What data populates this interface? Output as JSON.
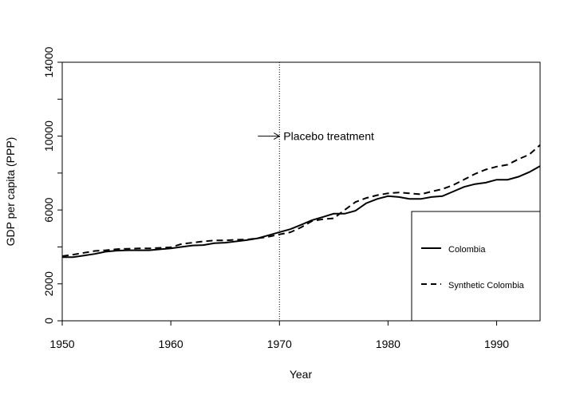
{
  "chart_data": {
    "type": "line",
    "xlabel": "Year",
    "ylabel": "GDP per capita (PPP)",
    "xlim": [
      1950,
      1994
    ],
    "ylim": [
      0,
      14000
    ],
    "x_ticks": [
      1950,
      1960,
      1970,
      1980,
      1990
    ],
    "y_ticks": [
      0,
      2000,
      6000,
      10000,
      14000
    ],
    "annotation": {
      "text": "Placebo treatment",
      "year": 1970,
      "value": 10000
    },
    "treatment_line_year": 1970,
    "legend_position": "bottom-right",
    "series": [
      {
        "name": "Colombia",
        "style": "solid",
        "color": "#000000",
        "x": [
          1950,
          1951,
          1952,
          1953,
          1954,
          1955,
          1956,
          1957,
          1958,
          1959,
          1960,
          1961,
          1962,
          1963,
          1964,
          1965,
          1966,
          1967,
          1968,
          1969,
          1970,
          1971,
          1972,
          1973,
          1974,
          1975,
          1976,
          1977,
          1978,
          1979,
          1980,
          1981,
          1982,
          1983,
          1984,
          1985,
          1986,
          1987,
          1988,
          1989,
          1990,
          1991,
          1992,
          1993,
          1994
        ],
        "values": [
          3450,
          3450,
          3530,
          3620,
          3740,
          3800,
          3820,
          3820,
          3820,
          3870,
          3920,
          4000,
          4080,
          4100,
          4200,
          4230,
          4300,
          4370,
          4470,
          4630,
          4800,
          4960,
          5200,
          5450,
          5620,
          5800,
          5800,
          5960,
          6370,
          6600,
          6750,
          6700,
          6600,
          6600,
          6700,
          6750,
          7000,
          7250,
          7400,
          7480,
          7640,
          7640,
          7800,
          8050,
          8380
        ]
      },
      {
        "name": "Synthetic Colombia",
        "style": "dashed",
        "color": "#000000",
        "x": [
          1950,
          1951,
          1952,
          1953,
          1954,
          1955,
          1956,
          1957,
          1958,
          1959,
          1960,
          1961,
          1962,
          1963,
          1964,
          1965,
          1966,
          1967,
          1968,
          1969,
          1970,
          1971,
          1972,
          1973,
          1974,
          1975,
          1976,
          1977,
          1978,
          1979,
          1980,
          1981,
          1982,
          1983,
          1984,
          1985,
          1986,
          1987,
          1988,
          1989,
          1990,
          1991,
          1992,
          1993,
          1994
        ],
        "values": [
          3500,
          3580,
          3680,
          3780,
          3820,
          3880,
          3900,
          3920,
          3920,
          3950,
          3980,
          4160,
          4230,
          4300,
          4350,
          4350,
          4390,
          4400,
          4470,
          4550,
          4680,
          4790,
          5060,
          5400,
          5500,
          5550,
          6000,
          6430,
          6650,
          6800,
          6900,
          6950,
          6900,
          6850,
          7000,
          7130,
          7350,
          7650,
          7950,
          8190,
          8350,
          8450,
          8750,
          9000,
          9520
        ]
      }
    ]
  }
}
